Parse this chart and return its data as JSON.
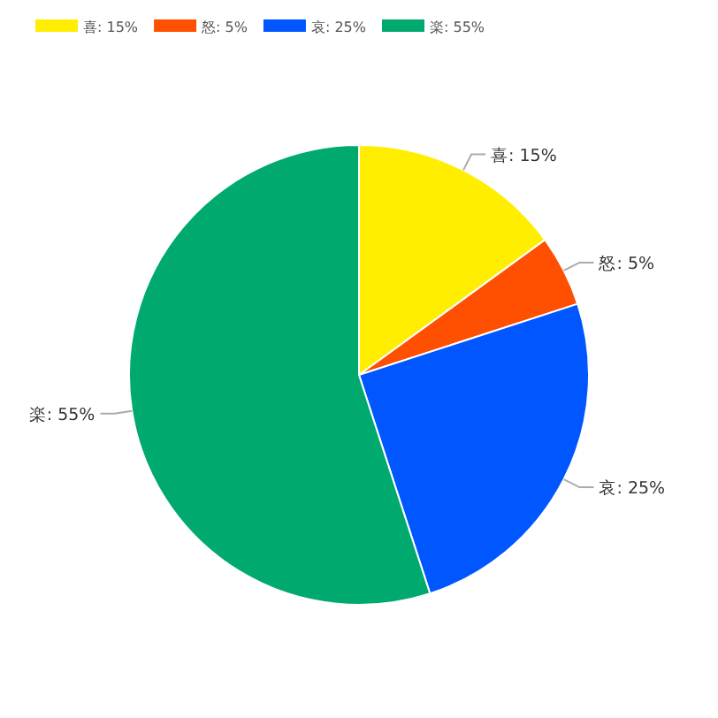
{
  "chart_data": {
    "type": "pie",
    "categories": [
      "喜: 15%",
      "怒: 5%",
      "哀: 25%",
      "楽: 55%"
    ],
    "values": [
      15,
      5,
      25,
      55
    ],
    "colors": [
      "#ffee00",
      "#ff4f00",
      "#0057ff",
      "#00aa6e"
    ],
    "legend": "top left"
  }
}
